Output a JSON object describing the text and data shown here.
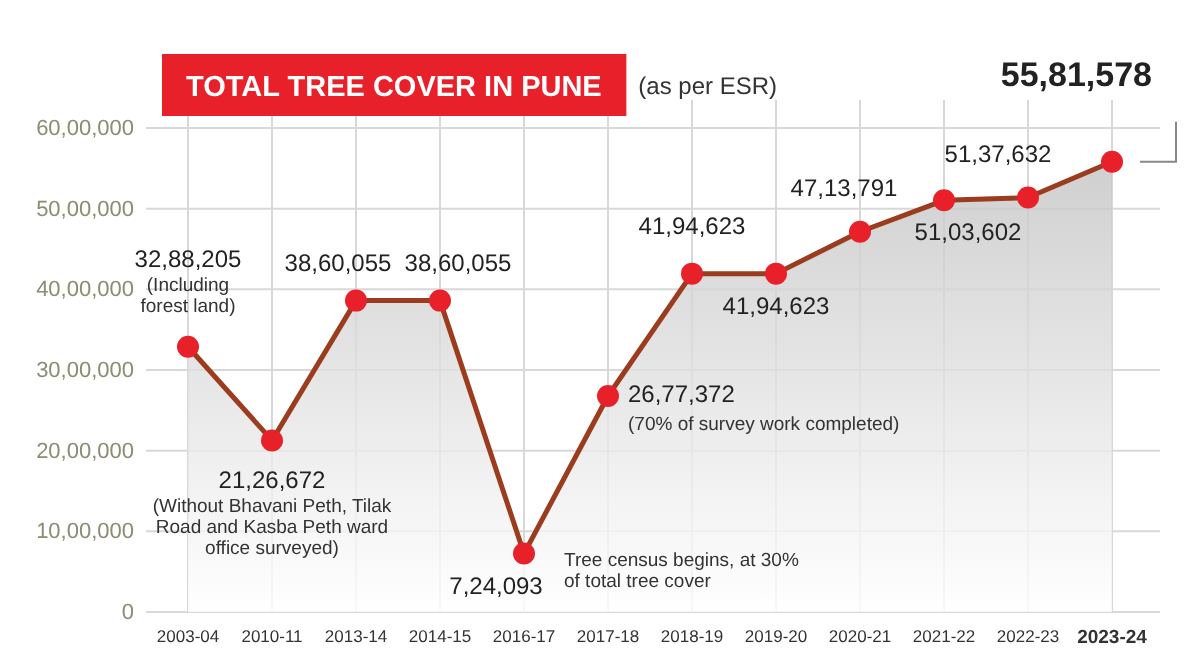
{
  "chart_data": {
    "type": "area",
    "title": "TOTAL TREE COVER IN PUNE",
    "subtitle": "(as per ESR)",
    "categories": [
      "2003-04",
      "2010-11",
      "2013-14",
      "2014-15",
      "2016-17",
      "2017-18",
      "2018-19",
      "2019-20",
      "2020-21",
      "2021-22",
      "2022-23",
      "2023-24"
    ],
    "series": [
      {
        "color": "#9b3c1e",
        "values": [
          3288205,
          2126672,
          3860055,
          3860055,
          724093,
          2677372,
          4194623,
          4194623,
          4713791,
          5103602,
          5137632,
          5581578
        ],
        "value_labels": [
          "32,88,205",
          "21,26,672",
          "38,60,055",
          "38,60,055",
          "7,24,093",
          "26,77,372",
          "41,94,623",
          "41,94,623",
          "47,13,791",
          "51,03,602",
          "51,37,632",
          "55,81,578"
        ]
      }
    ],
    "marker": "circle",
    "ylim": [
      0,
      6000000
    ],
    "yticks": [
      {
        "value": 0,
        "label": "0"
      },
      {
        "value": 1000000,
        "label": "10,00,000"
      },
      {
        "value": 2000000,
        "label": "20,00,000"
      },
      {
        "value": 3000000,
        "label": "30,00,000"
      },
      {
        "value": 4000000,
        "label": "40,00,000"
      },
      {
        "value": 5000000,
        "label": "50,00,000"
      },
      {
        "value": 6000000,
        "label": "60,00,000"
      }
    ],
    "grid": true,
    "annotations": [
      {
        "text": "(Including forest land)",
        "x": "2003-04",
        "y": 3288205
      },
      {
        "text": "(Without Bhavani Peth, Tilak Road and Kasba Peth ward office surveyed)",
        "x": "2010-11",
        "y": 2126672
      },
      {
        "text": "Tree census begins, at 30% of total tree cover",
        "x": "2016-17",
        "y": 724093
      },
      {
        "text": "(70% of survey work completed)",
        "x": "2017-18",
        "y": 2677372
      }
    ]
  }
}
